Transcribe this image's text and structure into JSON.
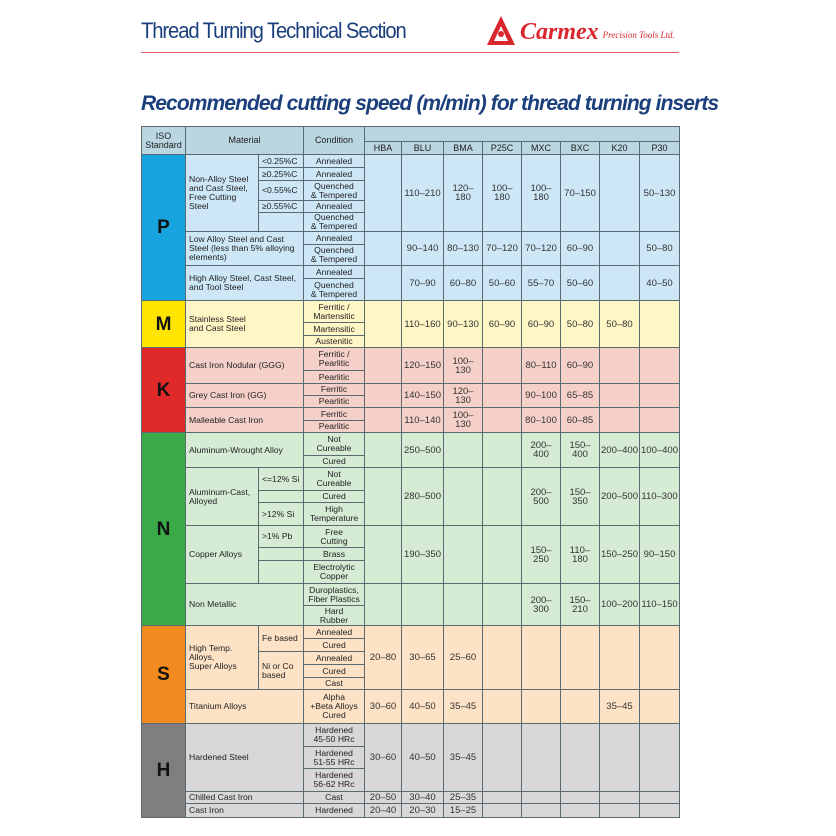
{
  "header": {
    "title": "Thread Turning Technical Section",
    "brand": "Carmex",
    "brand_sub": "Precision Tools Ltd.",
    "subtitle": "Recommended cutting speed (m/min) for thread turning inserts"
  },
  "colors": {
    "title": "#1b3f7c",
    "brand": "#d9272e",
    "P": "#16a3de",
    "M": "#ffe500",
    "K": "#e02a2a",
    "N": "#3aa947",
    "S": "#f28b1f",
    "H": "#7f7f7f"
  },
  "table": {
    "iso_header": "ISO\nStandard",
    "material_header": "Material",
    "condition_header": "Condition",
    "grades": [
      "HBA",
      "BLU",
      "BMA",
      "P25C",
      "MXC",
      "BXC",
      "K20",
      "P30"
    ]
  },
  "sections": {
    "P": {
      "iso": "P",
      "materials": [
        "Non-Alloy Steel\nand Cast Steel,\nFree Cutting Steel",
        "Low Alloy Steel and Cast\nSteel (less than 5% alloying\nelements)",
        "High Alloy Steel, Cast Steel,\nand Tool Steel"
      ],
      "subs": [
        "<0.25%C",
        "≥0.25%C",
        "<0.55%C",
        "≥0.55%C"
      ],
      "conditions": [
        "Annealed",
        "Annealed",
        "Quenched\n& Tempered",
        "Annealed",
        "Quenched\n& Tempered",
        "Annealed",
        "Quenched\n& Tempered",
        "Annealed",
        "Quenched\n& Tempered"
      ],
      "speeds": [
        [
          "",
          "110–210",
          "120–180",
          "100–180",
          "100–180",
          "70–150",
          "",
          "50–130"
        ],
        [
          "",
          "90–140",
          "80–130",
          "70–120",
          "70–120",
          "60–90",
          "",
          "50–80"
        ],
        [
          "",
          "70–90",
          "60–80",
          "50–60",
          "55–70",
          "50–60",
          "",
          "40–50"
        ]
      ]
    },
    "M": {
      "iso": "M",
      "materials": [
        "Stainless Steel\nand Cast Steel"
      ],
      "conditions": [
        "Ferritic /\nMartensitic",
        "Martensitic",
        "Austenitic"
      ],
      "speeds": [
        [
          "",
          "110–160",
          "90–130",
          "60–90",
          "60–90",
          "50–80",
          "50–80",
          ""
        ]
      ]
    },
    "K": {
      "iso": "K",
      "materials": [
        "Cast Iron Nodular (GGG)",
        "Grey Cast Iron (GG)",
        "Malleable Cast Iron"
      ],
      "conditions": [
        "Ferritic /\nPearlitic",
        "Pearlitic",
        "Ferritic",
        "Pearlitic",
        "Ferritic",
        "Pearlitic"
      ],
      "speeds": [
        [
          "",
          "120–150",
          "100–130",
          "",
          "80–110",
          "60–90",
          "",
          ""
        ],
        [
          "",
          "140–150",
          "120–130",
          "",
          "90–100",
          "65–85",
          "",
          ""
        ],
        [
          "",
          "110–140",
          "100–130",
          "",
          "80–100",
          "60–85",
          "",
          ""
        ]
      ]
    },
    "N": {
      "iso": "N",
      "materials": [
        "Aluminum-Wrought Alloy",
        "Aluminum-Cast,\nAlloyed",
        "Copper Alloys",
        "Non Metallic"
      ],
      "subs": [
        "<=12% Si",
        ">12% Si",
        ">1% Pb"
      ],
      "conditions": [
        "Not\nCureable",
        "Cured",
        "Not\nCureable",
        "Cured",
        "High\nTemperature",
        "Free\nCutting",
        "Brass",
        "Electrolytic\nCopper",
        "Duroplastics,\nFiber Plastics",
        "Hard\nRubber"
      ],
      "speeds": [
        [
          "",
          "250–500",
          "",
          "",
          "200–400",
          "150–400",
          "200–400",
          "100–400"
        ],
        [
          "",
          "280–500",
          "",
          "",
          "200–500",
          "150–350",
          "200–500",
          "110–300"
        ],
        [
          "",
          "190–350",
          "",
          "",
          "150–250",
          "110–180",
          "150–250",
          "90–150"
        ],
        [
          "",
          "",
          "",
          "",
          "200–300",
          "150–210",
          "100–200",
          "110–150"
        ]
      ]
    },
    "S": {
      "iso": "S",
      "materials": [
        "High Temp. Alloys,\nSuper Alloys",
        "Titanium Alloys"
      ],
      "subs": [
        "Fe based",
        "Ni or Co\nbased"
      ],
      "conditions": [
        "Annealed",
        "Cured",
        "Annealed",
        "Cured",
        "Cast",
        "Alpha\n+Beta Alloys\nCured"
      ],
      "speeds": [
        [
          "20–80",
          "30–65",
          "25–60",
          "",
          "",
          "",
          "",
          ""
        ],
        [
          "30–60",
          "40–50",
          "35–45",
          "",
          "",
          "",
          "35–45",
          ""
        ]
      ]
    },
    "H": {
      "iso": "H",
      "materials": [
        "Hardened Steel",
        "Chilled Cast Iron",
        "Cast Iron"
      ],
      "conditions": [
        "Hardened\n45-50 HRc",
        "Hardened\n51-55 HRc",
        "Hardened\n56-62 HRc",
        "Cast",
        "Hardened"
      ],
      "speeds": [
        [
          "30–60",
          "40–50",
          "35–45",
          "",
          "",
          "",
          "",
          ""
        ],
        [
          "20–50",
          "30–40",
          "25–35",
          "",
          "",
          "",
          "",
          ""
        ],
        [
          "20–40",
          "20–30",
          "15–25",
          "",
          "",
          "",
          "",
          ""
        ]
      ]
    }
  }
}
